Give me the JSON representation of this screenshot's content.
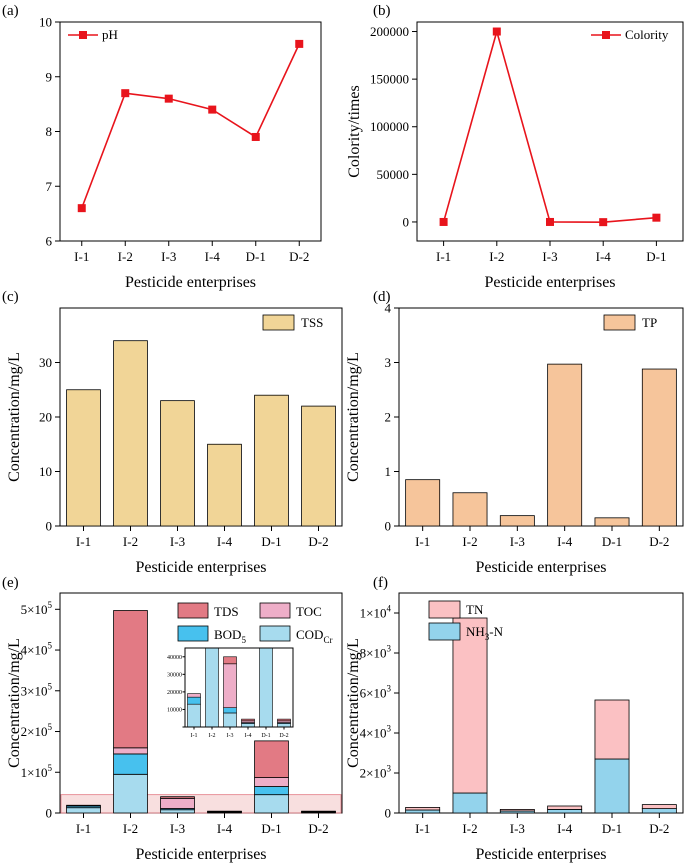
{
  "colors": {
    "line": "#e8141c",
    "tss": "#f1d597",
    "tp": "#f6c59b",
    "tds": "#e27a84",
    "toc": "#eeaec8",
    "bod": "#47c1ee",
    "cod": "#a7dbee",
    "tn": "#fbc1c3",
    "nh3": "#93d3ec",
    "highlight": "#f2c4c4",
    "highlight_edge": "#e27a84"
  },
  "chart_data": [
    {
      "id": "a",
      "panel_label": "(a)",
      "type": "line",
      "categories": [
        "I-1",
        "I-2",
        "I-3",
        "I-4",
        "D-1",
        "D-2"
      ],
      "series": [
        {
          "name": "pH",
          "values": [
            6.6,
            8.7,
            8.6,
            8.4,
            7.9,
            9.6
          ]
        }
      ],
      "xlabel": "Pesticide enterprises",
      "ylabel": "",
      "ylim": [
        6,
        10
      ],
      "yticks": [
        6,
        7,
        8,
        9,
        10
      ],
      "ytick_labels": [
        "6",
        "7",
        "8",
        "9",
        "10"
      ],
      "legend_position": "top-left"
    },
    {
      "id": "b",
      "panel_label": "(b)",
      "type": "line",
      "categories": [
        "I-1",
        "I-2",
        "I-3",
        "I-4",
        "D-1"
      ],
      "series": [
        {
          "name": "Colority",
          "values": [
            0,
            200000,
            0,
            -200,
            4500
          ]
        }
      ],
      "xlabel": "Pesticide enterprises",
      "ylabel": "Colority/times",
      "ylim": [
        -20000,
        210000
      ],
      "yticks": [
        0,
        50000,
        100000,
        150000,
        200000
      ],
      "ytick_labels": [
        "0",
        "50000",
        "100000",
        "150000",
        "200000"
      ],
      "legend_position": "top-right"
    },
    {
      "id": "c",
      "panel_label": "(c)",
      "type": "bar",
      "categories": [
        "I-1",
        "I-2",
        "I-3",
        "I-4",
        "D-1",
        "D-2"
      ],
      "series": [
        {
          "name": "TSS",
          "values": [
            25,
            34,
            23,
            15,
            24,
            22
          ]
        }
      ],
      "xlabel": "Pesticide enterprises",
      "ylabel": "Concentration/mg/L",
      "ylim": [
        0,
        40
      ],
      "yticks": [
        0,
        10,
        20,
        30
      ],
      "ytick_labels": [
        "0",
        "10",
        "20",
        "30"
      ],
      "legend_position": "top-right"
    },
    {
      "id": "d",
      "panel_label": "(d)",
      "type": "bar",
      "categories": [
        "I-1",
        "I-2",
        "I-3",
        "I-4",
        "D-1",
        "D-2"
      ],
      "series": [
        {
          "name": "TP",
          "values": [
            0.85,
            0.61,
            0.19,
            2.97,
            0.15,
            2.88
          ]
        }
      ],
      "xlabel": "Pesticide enterprises",
      "ylabel": "Concentration/mg/L",
      "ylim": [
        0,
        4
      ],
      "yticks": [
        0,
        1,
        2,
        3,
        4
      ],
      "ytick_labels": [
        "0",
        "1",
        "2",
        "3",
        "4"
      ],
      "legend_position": "top-right"
    },
    {
      "id": "e",
      "panel_label": "(e)",
      "type": "bar",
      "stacked": true,
      "categories": [
        "I-1",
        "I-2",
        "I-3",
        "I-4",
        "D-1",
        "D-2"
      ],
      "series": [
        {
          "name": "COD",
          "sub": "Cr",
          "values": [
            13000,
            95000,
            8000,
            2000,
            45000,
            2000
          ]
        },
        {
          "name": "BOD",
          "sub": "5",
          "values": [
            4000,
            50000,
            3000,
            500,
            20000,
            500
          ]
        },
        {
          "name": "TOC",
          "values": [
            2000,
            15000,
            25000,
            1000,
            22000,
            1000
          ]
        },
        {
          "name": "TDS",
          "values": [
            0,
            337000,
            4000,
            1000,
            90000,
            1000
          ]
        }
      ],
      "xlabel": "Pesticide enterprises",
      "ylabel": "Concentration/mg/L",
      "ylim": [
        0,
        540000
      ],
      "yticks": [
        0,
        100000,
        200000,
        300000,
        400000,
        500000
      ],
      "ytick_labels": [
        {
          "base": "0",
          "exp": ""
        },
        {
          "base": "1×10",
          "exp": "5"
        },
        {
          "base": "2×10",
          "exp": "5"
        },
        {
          "base": "3×10",
          "exp": "5"
        },
        {
          "base": "4×10",
          "exp": "5"
        },
        {
          "base": "5×10",
          "exp": "5"
        }
      ],
      "legend_position": "top-right",
      "highlight_band": [
        0,
        45000
      ],
      "inset": {
        "ylim": [
          0,
          45000
        ],
        "yticks": [
          0,
          10000,
          20000,
          30000,
          40000
        ],
        "ytick_labels": [
          "10000",
          "20000",
          "30000",
          "40000"
        ]
      }
    },
    {
      "id": "f",
      "panel_label": "(f)",
      "type": "bar",
      "stacked": true,
      "categories": [
        "I-1",
        "I-2",
        "I-3",
        "I-4",
        "D-1",
        "D-2"
      ],
      "series": [
        {
          "name": "NH",
          "sub": "3",
          "suffix": "-N",
          "values": [
            150,
            1000,
            100,
            180,
            2700,
            220
          ]
        },
        {
          "name": "TN",
          "values": [
            130,
            8750,
            80,
            170,
            2950,
            200
          ]
        }
      ],
      "xlabel": "Pesticide enterprises",
      "ylabel": "Concentration/mg/L",
      "ylim": [
        0,
        11000
      ],
      "yticks": [
        0,
        2000,
        4000,
        6000,
        8000,
        10000
      ],
      "ytick_labels": [
        {
          "base": "0",
          "exp": ""
        },
        {
          "base": "2×10",
          "exp": "3"
        },
        {
          "base": "4×10",
          "exp": "3"
        },
        {
          "base": "6×10",
          "exp": "3"
        },
        {
          "base": "8×10",
          "exp": "3"
        },
        {
          "base": "1×10",
          "exp": "4"
        }
      ],
      "legend_position": "top-left"
    }
  ]
}
